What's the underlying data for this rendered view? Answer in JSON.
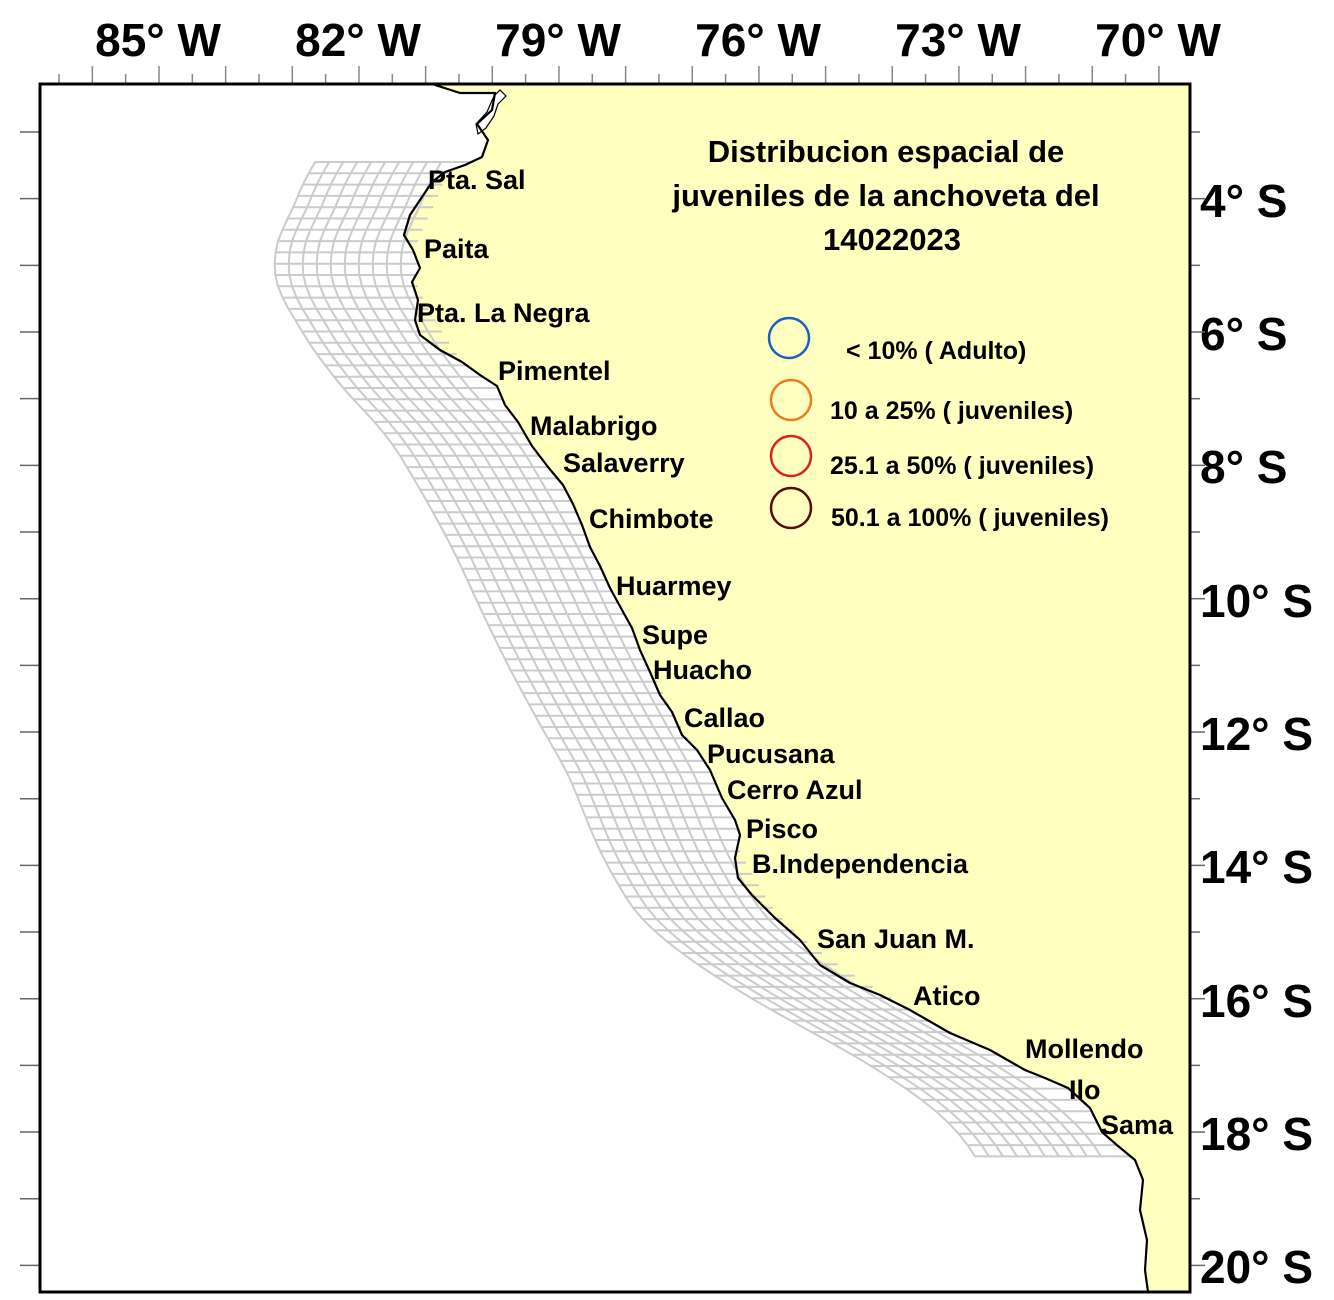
{
  "map": {
    "title_lines": [
      "Distribucion espacial de",
      "juveniles de la anchoveta del",
      "14022023"
    ],
    "colors": {
      "land": "#ffffc0",
      "sea": "#ffffff",
      "grid_lines": "#cccccc",
      "coast": "#000000"
    },
    "longitude_labels": [
      "85° W",
      "82° W",
      "79° W",
      "76° W",
      "73° W",
      "70° W"
    ],
    "latitude_labels": [
      "4° S",
      "6° S",
      "8° S",
      "10° S",
      "12° S",
      "14° S",
      "16° S",
      "18° S",
      "20° S"
    ],
    "ports": [
      "Pta. Sal",
      "Paita",
      "Pta. La Negra",
      "Pimentel",
      "Malabrigo",
      "Salaverry",
      "Chimbote",
      "Huarmey",
      "Supe",
      "Huacho",
      "Callao",
      "Pucusana",
      "Cerro Azul",
      "Pisco",
      "B.Independencia",
      "San Juan M.",
      "Atico",
      "Mollendo",
      "Ilo",
      "Sama"
    ],
    "legend": [
      {
        "label": "< 10% ( Adulto)",
        "color": "#1f5fbf"
      },
      {
        "label": "10 a 25% ( juveniles)",
        "color": "#f07a20"
      },
      {
        "label": "25.1 a 50% ( juveniles)",
        "color": "#e02020"
      },
      {
        "label": "50.1 a 100%  ( juveniles)",
        "color": "#5a0a0a"
      }
    ]
  }
}
